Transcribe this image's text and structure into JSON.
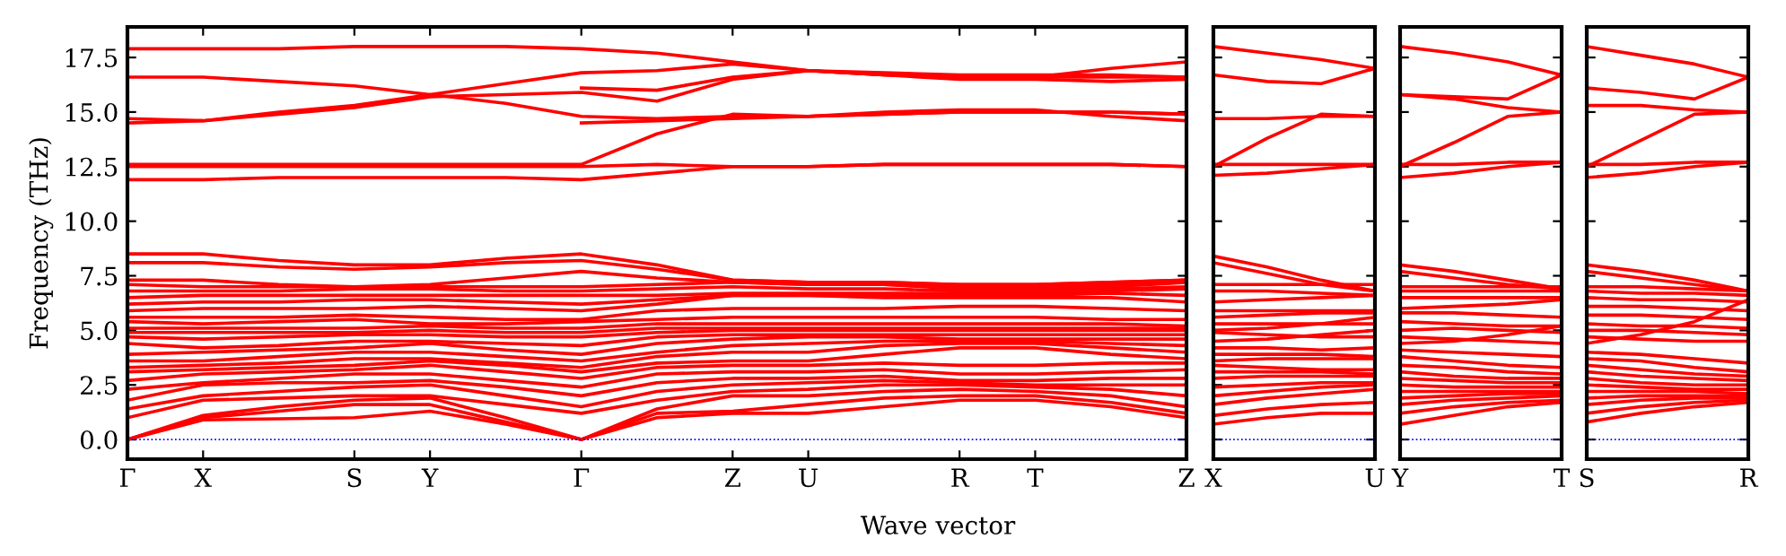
{
  "chart_data": [
    {
      "type": "line",
      "ylabel": "Frequency (THz)",
      "xlabel": "Wave vector",
      "line_style": "solid",
      "ylim": [
        -0.9,
        18.9
      ],
      "categories": [
        "Γ",
        "X",
        null,
        "S",
        "Y",
        null,
        "Γ",
        null,
        "Z",
        "U",
        null,
        "R",
        "T",
        null,
        "Z"
      ],
      "yticks": [
        {
          "value": 0,
          "label": "0.0"
        },
        {
          "value": 2.5,
          "label": "2.5"
        },
        {
          "value": 5,
          "label": "5.0"
        },
        {
          "value": 7.5,
          "label": "7.5"
        },
        {
          "value": 10,
          "label": "10.0"
        },
        {
          "value": 12.5,
          "label": "12.5"
        },
        {
          "value": 15,
          "label": "15.0"
        },
        {
          "value": 17.5,
          "label": "17.5"
        }
      ],
      "ref_lines": [
        {
          "axis": "y",
          "value": 0,
          "color": "#0000ff",
          "line_style": "dotted"
        }
      ],
      "series": [
        {
          "color": "#ff0000",
          "values": [
            0,
            0.9,
            0.95,
            1.0,
            1.3,
            0.7,
            0,
            1.0,
            1.2,
            1.2,
            1.5,
            1.8,
            1.8,
            1.5,
            1.0
          ]
        },
        {
          "color": "#ff0000",
          "values": [
            0,
            1.0,
            1.3,
            1.6,
            1.6,
            0.8,
            0,
            1.2,
            1.3,
            1.6,
            1.9,
            2.0,
            2.0,
            1.7,
            1.2
          ]
        },
        {
          "color": "#ff0000",
          "values": [
            0,
            1.1,
            1.5,
            1.8,
            1.9,
            1.0,
            0,
            1.4,
            2.0,
            2.0,
            2.2,
            2.3,
            2.2,
            2.0,
            1.5
          ]
        },
        {
          "color": "#ff0000",
          "values": [
            1.0,
            1.8,
            1.9,
            2.0,
            2.0,
            1.6,
            1.2,
            1.8,
            2.2,
            2.3,
            2.5,
            2.5,
            2.4,
            2.3,
            2.0
          ]
        },
        {
          "color": "#ff0000",
          "values": [
            1.4,
            2.0,
            2.2,
            2.4,
            2.5,
            2.0,
            1.5,
            2.2,
            2.5,
            2.6,
            2.7,
            2.6,
            2.5,
            2.5,
            2.5
          ]
        },
        {
          "color": "#ff0000",
          "values": [
            1.8,
            2.5,
            2.6,
            2.6,
            2.7,
            2.4,
            2.0,
            2.6,
            2.8,
            2.8,
            2.9,
            2.7,
            2.7,
            2.8,
            2.8
          ]
        },
        {
          "color": "#ff0000",
          "values": [
            2.3,
            2.6,
            2.8,
            3.0,
            3.0,
            2.7,
            2.4,
            3.0,
            3.1,
            3.1,
            3.2,
            3.0,
            3.0,
            3.1,
            3.2
          ]
        },
        {
          "color": "#ff0000",
          "values": [
            2.7,
            3.0,
            3.1,
            3.2,
            3.4,
            3.1,
            2.8,
            3.3,
            3.4,
            3.4,
            3.5,
            3.4,
            3.4,
            3.5,
            3.5
          ]
        },
        {
          "color": "#ff0000",
          "values": [
            3.1,
            3.2,
            3.3,
            3.4,
            3.6,
            3.4,
            3.1,
            3.5,
            3.6,
            3.6,
            3.9,
            4.2,
            4.2,
            3.9,
            3.7
          ]
        },
        {
          "color": "#ff0000",
          "values": [
            3.3,
            3.4,
            3.5,
            3.7,
            3.7,
            3.5,
            3.3,
            3.8,
            4.0,
            4.0,
            4.3,
            4.4,
            4.4,
            4.2,
            4.0
          ]
        },
        {
          "color": "#ff0000",
          "values": [
            3.6,
            3.6,
            3.8,
            4.0,
            4.0,
            3.8,
            3.6,
            4.0,
            4.3,
            4.4,
            4.5,
            4.5,
            4.5,
            4.4,
            4.3
          ]
        },
        {
          "color": "#ff0000",
          "values": [
            3.9,
            4.0,
            4.1,
            4.2,
            4.4,
            4.1,
            3.9,
            4.4,
            4.6,
            4.7,
            4.7,
            4.6,
            4.6,
            4.6,
            4.6
          ]
        },
        {
          "color": "#ff0000",
          "values": [
            4.4,
            4.2,
            4.3,
            4.5,
            4.5,
            4.4,
            4.3,
            4.7,
            4.8,
            4.8,
            4.8,
            4.8,
            4.8,
            4.8,
            4.8
          ]
        },
        {
          "color": "#ff0000",
          "values": [
            4.7,
            4.6,
            4.7,
            4.8,
            4.8,
            4.7,
            4.7,
            4.9,
            5.0,
            5.0,
            5.0,
            5.0,
            5.0,
            5.0,
            5.0
          ]
        },
        {
          "color": "#ff0000",
          "values": [
            4.9,
            4.9,
            4.9,
            4.9,
            5.0,
            4.9,
            4.9,
            5.1,
            5.1,
            5.1,
            5.1,
            5.1,
            5.1,
            5.1,
            5.1
          ]
        },
        {
          "color": "#ff0000",
          "values": [
            5.1,
            5.1,
            5.1,
            5.1,
            5.2,
            5.1,
            5.1,
            5.3,
            5.3,
            5.3,
            5.3,
            5.3,
            5.3,
            5.3,
            5.2
          ]
        },
        {
          "color": "#ff0000",
          "values": [
            5.4,
            5.3,
            5.4,
            5.5,
            5.3,
            5.3,
            5.4,
            5.5,
            5.6,
            5.6,
            5.6,
            5.6,
            5.6,
            5.5,
            5.5
          ]
        },
        {
          "color": "#ff0000",
          "values": [
            5.6,
            5.6,
            5.6,
            5.7,
            5.6,
            5.5,
            5.5,
            5.9,
            6.0,
            6.0,
            6.0,
            6.1,
            6.1,
            6.0,
            5.9
          ]
        },
        {
          "color": "#ff0000",
          "values": [
            5.9,
            6.0,
            6.0,
            6.0,
            6.1,
            6.0,
            5.9,
            6.2,
            6.6,
            6.6,
            6.5,
            6.5,
            6.5,
            6.5,
            6.3
          ]
        },
        {
          "color": "#ff0000",
          "values": [
            6.2,
            6.3,
            6.3,
            6.4,
            6.4,
            6.3,
            6.2,
            6.4,
            6.6,
            6.6,
            6.6,
            6.6,
            6.6,
            6.7,
            6.6
          ]
        },
        {
          "color": "#ff0000",
          "values": [
            6.5,
            6.6,
            6.6,
            6.6,
            6.6,
            6.6,
            6.6,
            6.6,
            6.7,
            6.7,
            6.7,
            6.7,
            6.7,
            6.8,
            6.9
          ]
        },
        {
          "color": "#ff0000",
          "values": [
            6.8,
            6.8,
            6.8,
            6.9,
            6.9,
            6.8,
            6.8,
            6.9,
            7.0,
            6.9,
            6.9,
            6.8,
            6.8,
            6.9,
            7.0
          ]
        },
        {
          "color": "#ff0000",
          "values": [
            7.1,
            7.0,
            7.0,
            7.0,
            7.0,
            7.0,
            7.0,
            7.1,
            7.2,
            7.1,
            7.1,
            6.9,
            6.9,
            7.0,
            7.2
          ]
        },
        {
          "color": "#ff0000",
          "values": [
            7.3,
            7.3,
            7.1,
            7.0,
            7.1,
            7.4,
            7.7,
            7.4,
            7.2,
            7.1,
            7.1,
            7.0,
            7.0,
            7.1,
            7.3
          ]
        },
        {
          "color": "#ff0000",
          "values": [
            8.1,
            8.1,
            7.9,
            7.8,
            7.9,
            8.1,
            8.2,
            7.8,
            7.3,
            7.2,
            7.2,
            7.1,
            7.1,
            7.2,
            7.3
          ]
        },
        {
          "color": "#ff0000",
          "values": [
            8.5,
            8.5,
            8.2,
            8.0,
            8.0,
            8.3,
            8.5,
            8.0,
            7.3,
            7.2,
            7.2,
            7.1,
            7.1,
            7.2,
            7.3
          ]
        },
        {
          "color": "#ff0000",
          "values": [
            11.9,
            11.9,
            12.0,
            12.0,
            12.0,
            12.0,
            11.9,
            12.2,
            12.5,
            12.5,
            12.6,
            12.6,
            12.6,
            12.6,
            12.5
          ]
        },
        {
          "color": "#ff0000",
          "values": [
            12.5,
            12.5,
            12.5,
            12.5,
            12.5,
            12.5,
            12.5,
            12.6,
            12.5,
            12.5,
            12.6,
            12.6,
            12.6,
            12.6,
            12.5
          ]
        },
        {
          "color": "#ff0000",
          "values": [
            12.6,
            12.6,
            12.6,
            12.6,
            12.6,
            12.6,
            12.6,
            14.0,
            14.9,
            14.8,
            14.9,
            15.0,
            15.0,
            15.0,
            14.9
          ]
        },
        {
          "color": "#ff0000",
          "values": [
            14.5,
            14.6,
            15.0,
            15.3,
            15.8,
            16.3,
            16.8,
            16.9,
            17.2,
            16.9,
            16.8,
            16.7,
            16.7,
            16.7,
            16.6
          ]
        },
        {
          "color": "#ff0000",
          "values": [
            14.7,
            14.6,
            14.9,
            15.2,
            15.7,
            15.8,
            15.9,
            15.5,
            16.5,
            16.9,
            16.7,
            16.6,
            16.6,
            16.6,
            16.6
          ]
        },
        {
          "color": "#ff0000",
          "values": [
            16.6,
            16.6,
            16.4,
            16.2,
            15.8,
            15.4,
            14.8,
            14.7,
            14.8,
            14.8,
            14.9,
            15.0,
            15.0,
            15.0,
            14.9
          ]
        },
        {
          "color": "#ff0000",
          "values": [
            17.9,
            17.9,
            17.9,
            18.0,
            18.0,
            18.0,
            17.9,
            17.7,
            17.3,
            16.9,
            16.7,
            16.6,
            16.6,
            17.0,
            17.3
          ]
        },
        {
          "color": "#ff0000",
          "values": [
            null,
            null,
            null,
            null,
            null,
            null,
            14.5,
            14.6,
            14.7,
            14.8,
            15.0,
            15.1,
            15.1,
            14.8,
            14.6
          ]
        },
        {
          "color": "#ff0000",
          "values": [
            null,
            null,
            null,
            null,
            null,
            null,
            16.1,
            16.0,
            16.6,
            16.9,
            16.7,
            16.5,
            16.5,
            16.4,
            16.5
          ]
        }
      ]
    },
    {
      "type": "line",
      "line_style": "solid",
      "tick_labels": "x",
      "ylim": [
        -0.9,
        18.9
      ],
      "categories": [
        "X",
        null,
        null,
        "U"
      ],
      "yticks": [
        {
          "value": 0,
          "label": null
        },
        {
          "value": 2.5,
          "label": null
        },
        {
          "value": 5,
          "label": null
        },
        {
          "value": 7.5,
          "label": null
        },
        {
          "value": 10,
          "label": null
        },
        {
          "value": 12.5,
          "label": null
        },
        {
          "value": 15,
          "label": null
        },
        {
          "value": 17.5,
          "label": null
        }
      ],
      "ref_lines": [
        {
          "axis": "y",
          "value": 0,
          "color": "#0000ff",
          "line_style": "dotted"
        }
      ],
      "series": [
        {
          "color": "#ff0000",
          "values": [
            8.4,
            7.9,
            7.3,
            6.8
          ]
        },
        {
          "color": "#ff0000",
          "values": [
            8.1,
            7.6,
            7.1,
            6.8
          ]
        },
        {
          "color": "#ff0000",
          "values": [
            7.1,
            7.1,
            7.1,
            7.1
          ]
        },
        {
          "color": "#ff0000",
          "values": [
            6.8,
            6.8,
            6.7,
            6.6
          ]
        },
        {
          "color": "#ff0000",
          "values": [
            6.3,
            6.4,
            6.5,
            6.6
          ]
        },
        {
          "color": "#ff0000",
          "values": [
            5.9,
            5.9,
            5.9,
            5.9
          ]
        },
        {
          "color": "#ff0000",
          "values": [
            5.6,
            5.7,
            5.8,
            5.8
          ]
        },
        {
          "color": "#ff0000",
          "values": [
            5.3,
            5.3,
            5.3,
            5.3
          ]
        },
        {
          "color": "#ff0000",
          "values": [
            5.0,
            5.1,
            5.3,
            5.6
          ]
        },
        {
          "color": "#ff0000",
          "values": [
            4.9,
            4.8,
            4.7,
            4.7
          ]
        },
        {
          "color": "#ff0000",
          "values": [
            4.5,
            4.6,
            4.8,
            5.0
          ]
        },
        {
          "color": "#ff0000",
          "values": [
            4.2,
            4.2,
            4.1,
            4.2
          ]
        },
        {
          "color": "#ff0000",
          "values": [
            3.9,
            3.9,
            3.9,
            3.8
          ]
        },
        {
          "color": "#ff0000",
          "values": [
            3.6,
            3.7,
            3.7,
            3.7
          ]
        },
        {
          "color": "#ff0000",
          "values": [
            3.4,
            3.3,
            3.2,
            3.2
          ]
        },
        {
          "color": "#ff0000",
          "values": [
            3.1,
            3.1,
            3.1,
            3.0
          ]
        },
        {
          "color": "#ff0000",
          "values": [
            2.8,
            2.9,
            2.9,
            2.9
          ]
        },
        {
          "color": "#ff0000",
          "values": [
            2.4,
            2.5,
            2.6,
            2.6
          ]
        },
        {
          "color": "#ff0000",
          "values": [
            2.0,
            2.2,
            2.4,
            2.5
          ]
        },
        {
          "color": "#ff0000",
          "values": [
            1.6,
            1.9,
            2.1,
            2.3
          ]
        },
        {
          "color": "#ff0000",
          "values": [
            1.1,
            1.4,
            1.6,
            1.7
          ]
        },
        {
          "color": "#ff0000",
          "values": [
            0.7,
            1.0,
            1.2,
            1.2
          ]
        },
        {
          "color": "#ff0000",
          "values": [
            12.1,
            12.2,
            12.4,
            12.6
          ]
        },
        {
          "color": "#ff0000",
          "values": [
            12.6,
            12.6,
            12.6,
            12.6
          ]
        },
        {
          "color": "#ff0000",
          "values": [
            12.5,
            13.8,
            14.9,
            14.8
          ]
        },
        {
          "color": "#ff0000",
          "values": [
            14.7,
            14.7,
            14.8,
            14.8
          ]
        },
        {
          "color": "#ff0000",
          "values": [
            16.7,
            16.4,
            16.3,
            17.0
          ]
        },
        {
          "color": "#ff0000",
          "values": [
            18.0,
            17.7,
            17.4,
            17.0
          ]
        }
      ]
    },
    {
      "type": "line",
      "line_style": "solid",
      "tick_labels": "x",
      "ylim": [
        -0.9,
        18.9
      ],
      "categories": [
        "Y",
        null,
        null,
        "T"
      ],
      "yticks": [
        {
          "value": 0,
          "label": null
        },
        {
          "value": 2.5,
          "label": null
        },
        {
          "value": 5,
          "label": null
        },
        {
          "value": 7.5,
          "label": null
        },
        {
          "value": 10,
          "label": null
        },
        {
          "value": 12.5,
          "label": null
        },
        {
          "value": 15,
          "label": null
        },
        {
          "value": 17.5,
          "label": null
        }
      ],
      "ref_lines": [
        {
          "axis": "y",
          "value": 0,
          "color": "#0000ff",
          "line_style": "dotted"
        }
      ],
      "series": [
        {
          "color": "#ff0000",
          "values": [
            8.0,
            7.7,
            7.3,
            6.9
          ]
        },
        {
          "color": "#ff0000",
          "values": [
            7.7,
            7.4,
            7.1,
            6.9
          ]
        },
        {
          "color": "#ff0000",
          "values": [
            7.0,
            7.0,
            7.0,
            7.0
          ]
        },
        {
          "color": "#ff0000",
          "values": [
            6.8,
            6.8,
            6.8,
            6.8
          ]
        },
        {
          "color": "#ff0000",
          "values": [
            6.5,
            6.5,
            6.5,
            6.5
          ]
        },
        {
          "color": "#ff0000",
          "values": [
            6.0,
            6.1,
            6.2,
            6.4
          ]
        },
        {
          "color": "#ff0000",
          "values": [
            5.8,
            5.8,
            5.7,
            5.6
          ]
        },
        {
          "color": "#ff0000",
          "values": [
            5.4,
            5.3,
            5.2,
            5.2
          ]
        },
        {
          "color": "#ff0000",
          "values": [
            5.0,
            5.1,
            5.0,
            4.9
          ]
        },
        {
          "color": "#ff0000",
          "values": [
            4.7,
            4.6,
            4.5,
            4.4
          ]
        },
        {
          "color": "#ff0000",
          "values": [
            4.4,
            4.5,
            4.8,
            5.2
          ]
        },
        {
          "color": "#ff0000",
          "values": [
            4.1,
            4.0,
            3.9,
            3.8
          ]
        },
        {
          "color": "#ff0000",
          "values": [
            3.8,
            3.6,
            3.4,
            3.3
          ]
        },
        {
          "color": "#ff0000",
          "values": [
            3.4,
            3.3,
            3.1,
            3.0
          ]
        },
        {
          "color": "#ff0000",
          "values": [
            3.1,
            2.9,
            2.8,
            2.8
          ]
        },
        {
          "color": "#ff0000",
          "values": [
            2.8,
            2.7,
            2.6,
            2.6
          ]
        },
        {
          "color": "#ff0000",
          "values": [
            2.5,
            2.4,
            2.4,
            2.4
          ]
        },
        {
          "color": "#ff0000",
          "values": [
            2.2,
            2.2,
            2.2,
            2.2
          ]
        },
        {
          "color": "#ff0000",
          "values": [
            1.9,
            2.0,
            2.1,
            2.1
          ]
        },
        {
          "color": "#ff0000",
          "values": [
            1.6,
            1.8,
            1.9,
            2.0
          ]
        },
        {
          "color": "#ff0000",
          "values": [
            1.2,
            1.5,
            1.7,
            1.8
          ]
        },
        {
          "color": "#ff0000",
          "values": [
            0.7,
            1.1,
            1.5,
            1.7
          ]
        },
        {
          "color": "#ff0000",
          "values": [
            12.0,
            12.2,
            12.5,
            12.7
          ]
        },
        {
          "color": "#ff0000",
          "values": [
            12.6,
            12.6,
            12.7,
            12.7
          ]
        },
        {
          "color": "#ff0000",
          "values": [
            12.5,
            13.6,
            14.8,
            15.0
          ]
        },
        {
          "color": "#ff0000",
          "values": [
            15.8,
            15.6,
            15.2,
            15.0
          ]
        },
        {
          "color": "#ff0000",
          "values": [
            15.8,
            15.7,
            15.6,
            16.7
          ]
        },
        {
          "color": "#ff0000",
          "values": [
            18.0,
            17.7,
            17.3,
            16.7
          ]
        }
      ]
    },
    {
      "type": "line",
      "line_style": "solid",
      "tick_labels": "x",
      "ylim": [
        -0.9,
        18.9
      ],
      "categories": [
        "S",
        null,
        null,
        "R"
      ],
      "yticks": [
        {
          "value": 0,
          "label": null
        },
        {
          "value": 2.5,
          "label": null
        },
        {
          "value": 5,
          "label": null
        },
        {
          "value": 7.5,
          "label": null
        },
        {
          "value": 10,
          "label": null
        },
        {
          "value": 12.5,
          "label": null
        },
        {
          "value": 15,
          "label": null
        },
        {
          "value": 17.5,
          "label": null
        }
      ],
      "ref_lines": [
        {
          "axis": "y",
          "value": 0,
          "color": "#0000ff",
          "line_style": "dotted"
        }
      ],
      "series": [
        {
          "color": "#ff0000",
          "values": [
            8.0,
            7.7,
            7.3,
            6.8
          ]
        },
        {
          "color": "#ff0000",
          "values": [
            7.7,
            7.4,
            7.1,
            6.8
          ]
        },
        {
          "color": "#ff0000",
          "values": [
            7.0,
            7.0,
            6.9,
            6.8
          ]
        },
        {
          "color": "#ff0000",
          "values": [
            6.8,
            6.7,
            6.7,
            6.6
          ]
        },
        {
          "color": "#ff0000",
          "values": [
            6.5,
            6.4,
            6.4,
            6.3
          ]
        },
        {
          "color": "#ff0000",
          "values": [
            6.1,
            6.1,
            6.0,
            5.9
          ]
        },
        {
          "color": "#ff0000",
          "values": [
            5.7,
            5.7,
            5.6,
            5.5
          ]
        },
        {
          "color": "#ff0000",
          "values": [
            5.3,
            5.2,
            5.2,
            5.1
          ]
        },
        {
          "color": "#ff0000",
          "values": [
            5.0,
            5.0,
            4.9,
            4.8
          ]
        },
        {
          "color": "#ff0000",
          "values": [
            4.7,
            4.6,
            4.5,
            4.5
          ]
        },
        {
          "color": "#ff0000",
          "values": [
            4.4,
            4.8,
            5.4,
            6.4
          ]
        },
        {
          "color": "#ff0000",
          "values": [
            4.0,
            3.9,
            3.7,
            3.5
          ]
        },
        {
          "color": "#ff0000",
          "values": [
            3.7,
            3.6,
            3.3,
            3.1
          ]
        },
        {
          "color": "#ff0000",
          "values": [
            3.4,
            3.2,
            3.0,
            2.9
          ]
        },
        {
          "color": "#ff0000",
          "values": [
            3.1,
            2.9,
            2.8,
            2.7
          ]
        },
        {
          "color": "#ff0000",
          "values": [
            2.8,
            2.6,
            2.5,
            2.5
          ]
        },
        {
          "color": "#ff0000",
          "values": [
            2.5,
            2.4,
            2.3,
            2.3
          ]
        },
        {
          "color": "#ff0000",
          "values": [
            2.2,
            2.2,
            2.2,
            2.1
          ]
        },
        {
          "color": "#ff0000",
          "values": [
            1.9,
            2.0,
            2.0,
            2.0
          ]
        },
        {
          "color": "#ff0000",
          "values": [
            1.6,
            1.8,
            1.9,
            1.9
          ]
        },
        {
          "color": "#ff0000",
          "values": [
            1.2,
            1.5,
            1.7,
            1.8
          ]
        },
        {
          "color": "#ff0000",
          "values": [
            0.8,
            1.2,
            1.5,
            1.7
          ]
        },
        {
          "color": "#ff0000",
          "values": [
            12.0,
            12.2,
            12.5,
            12.7
          ]
        },
        {
          "color": "#ff0000",
          "values": [
            12.6,
            12.6,
            12.7,
            12.7
          ]
        },
        {
          "color": "#ff0000",
          "values": [
            12.5,
            13.7,
            14.9,
            15.0
          ]
        },
        {
          "color": "#ff0000",
          "values": [
            15.3,
            15.3,
            15.1,
            15.0
          ]
        },
        {
          "color": "#ff0000",
          "values": [
            16.1,
            15.9,
            15.6,
            16.6
          ]
        },
        {
          "color": "#ff0000",
          "values": [
            18.0,
            17.6,
            17.2,
            16.6
          ]
        }
      ]
    }
  ]
}
